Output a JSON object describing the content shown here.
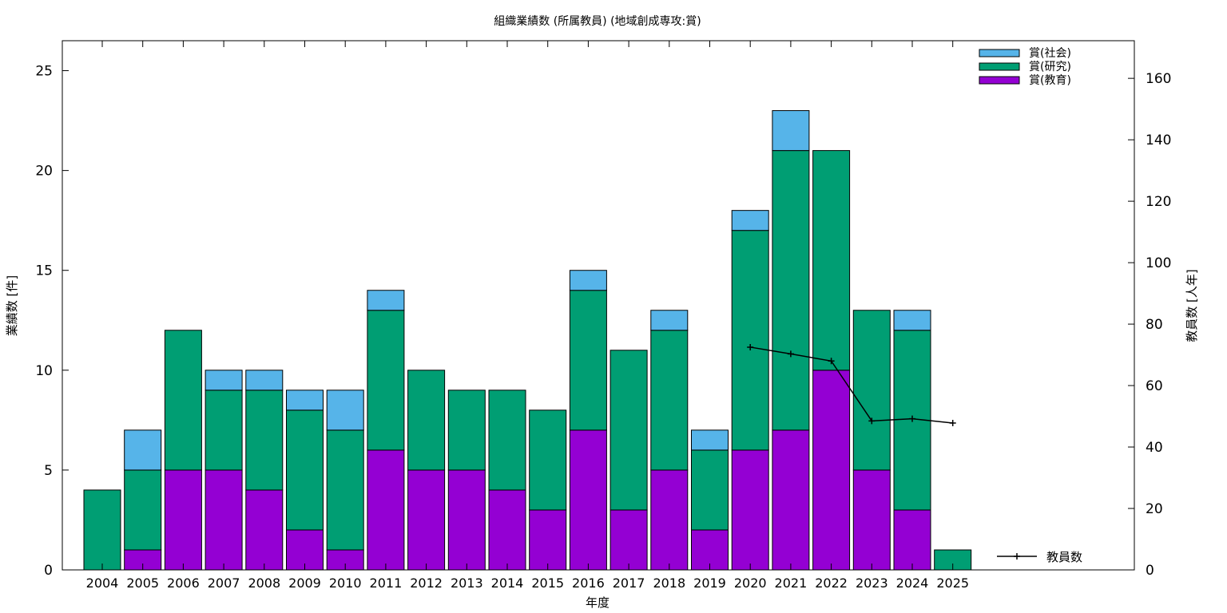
{
  "chart_data": {
    "type": "bar",
    "stacked": true,
    "title": "組織業績数 (所属教員) (地域創成専攻:賞)",
    "xlabel": "年度",
    "ylabel": "業績数 [件]",
    "y2label": "教員数 [人年]",
    "categories": [
      "2004",
      "2005",
      "2006",
      "2007",
      "2008",
      "2009",
      "2010",
      "2011",
      "2012",
      "2013",
      "2014",
      "2015",
      "2016",
      "2017",
      "2018",
      "2019",
      "2020",
      "2021",
      "2022",
      "2023",
      "2024",
      "2025"
    ],
    "ylim": [
      0,
      26.5
    ],
    "y2lim": [
      0,
      172.25
    ],
    "yticks": [
      0,
      5,
      10,
      15,
      20,
      25
    ],
    "y2ticks": [
      0,
      20,
      40,
      60,
      80,
      100,
      120,
      140,
      160
    ],
    "series": [
      {
        "name": "賞(教育)",
        "color": "#9400d3",
        "values": [
          0,
          1,
          5,
          5,
          4,
          2,
          1,
          6,
          5,
          5,
          4,
          3,
          7,
          3,
          5,
          2,
          6,
          7,
          10,
          5,
          3,
          0
        ]
      },
      {
        "name": "賞(研究)",
        "color": "#009e73",
        "values": [
          4,
          4,
          7,
          4,
          5,
          6,
          6,
          7,
          5,
          4,
          5,
          5,
          7,
          8,
          7,
          4,
          11,
          14,
          11,
          8,
          9,
          1
        ]
      },
      {
        "name": "賞(社会)",
        "color": "#56b4e9",
        "values": [
          0,
          2,
          0,
          1,
          1,
          1,
          2,
          1,
          0,
          0,
          0,
          0,
          1,
          0,
          1,
          1,
          1,
          2,
          0,
          0,
          1,
          0
        ]
      }
    ],
    "line_series": {
      "name": "教員数",
      "color": "#000000",
      "axis": "y2",
      "points": [
        {
          "x": "2020",
          "y": 72.5
        },
        {
          "x": "2021",
          "y": 70.3
        },
        {
          "x": "2022",
          "y": 68.0
        },
        {
          "x": "2023",
          "y": 48.5
        },
        {
          "x": "2024",
          "y": 49.2
        },
        {
          "x": "2025",
          "y": 47.8
        }
      ]
    },
    "legend_position": "top-right",
    "line_legend_position": "bottom-right",
    "grid": false
  }
}
